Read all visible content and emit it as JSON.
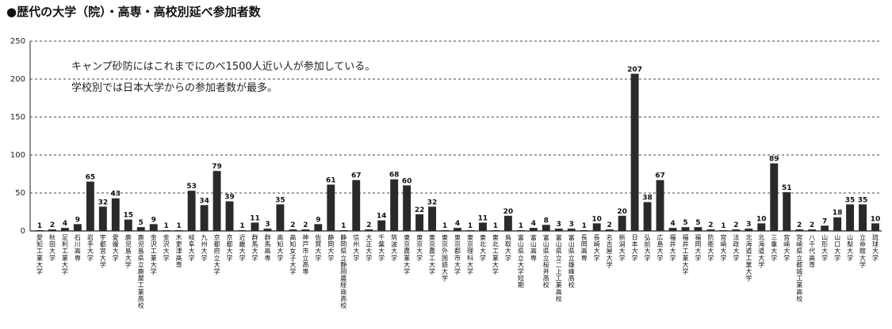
{
  "chart_data": {
    "type": "bar",
    "title": "●歴代の大学（院）・高専・高校別延べ参加者数",
    "annotation": [
      "キャンプ砂防にはこれまでにのべ1500人近い人が参加している。",
      "学校別では日本大学からの参加者数が最多。"
    ],
    "ylim": [
      0,
      250
    ],
    "yticks": [
      0,
      50,
      100,
      150,
      200,
      250
    ],
    "grid": "dashed-horizontal",
    "bar_color": "#2a2a2a",
    "categories": [
      "愛知工業大学",
      "秋田大学",
      "足利工業大学",
      "石川高専",
      "岩手大学",
      "宇都宮大学",
      "愛媛大学",
      "鹿児島大学",
      "鹿児島県立鹿屋工業高校",
      "金沢工業大学",
      "金沢大学",
      "木更津高専",
      "岐阜大学",
      "九州大学",
      "京都府立大学",
      "京都大学",
      "近畿大学",
      "群馬大学",
      "群馬高専",
      "高知大学",
      "高知女子大学",
      "神戸市立高専",
      "佐賀大学",
      "静岡大学",
      "静岡県立静岡農経商高校",
      "信州大学",
      "大正大学",
      "千葉大学",
      "筑波大学",
      "東京農業大学",
      "東京大学",
      "東京農工大学",
      "東京外国語大学",
      "東京都市大学",
      "東京理科大学",
      "東北大学",
      "東北工業大学",
      "鳥取大学",
      "富山県立大学短期",
      "富山高専",
      "富山県立桜井高校",
      "富山県立二上工業高校",
      "富山県立雄峰高校",
      "長岡高専",
      "長崎大学",
      "名古屋大学",
      "新潟大学",
      "日本大学",
      "弘前大学",
      "広島大学",
      "福井大学",
      "福井工業大学",
      "福岡大学",
      "防衛大学",
      "宮崎大学",
      "法政大学",
      "北海道工業大学",
      "北海道大学",
      "三重大学",
      "宮崎大学",
      "宮崎県立都城工業高校",
      "八千代高専",
      "山形大学",
      "山口大学",
      "山梨大学",
      "立命館大学",
      "琉球大学"
    ],
    "values": [
      1,
      2,
      4,
      9,
      65,
      32,
      43,
      15,
      5,
      9,
      1,
      1,
      53,
      34,
      79,
      39,
      1,
      11,
      3,
      35,
      2,
      2,
      9,
      61,
      1,
      67,
      2,
      14,
      68,
      60,
      22,
      32,
      1,
      4,
      1,
      11,
      1,
      20,
      1,
      4,
      8,
      3,
      3,
      1,
      10,
      2,
      20,
      207,
      38,
      67,
      4,
      5,
      5,
      2,
      1,
      2,
      3,
      10,
      89,
      51,
      2,
      2,
      7,
      18,
      35,
      35,
      10
    ]
  }
}
